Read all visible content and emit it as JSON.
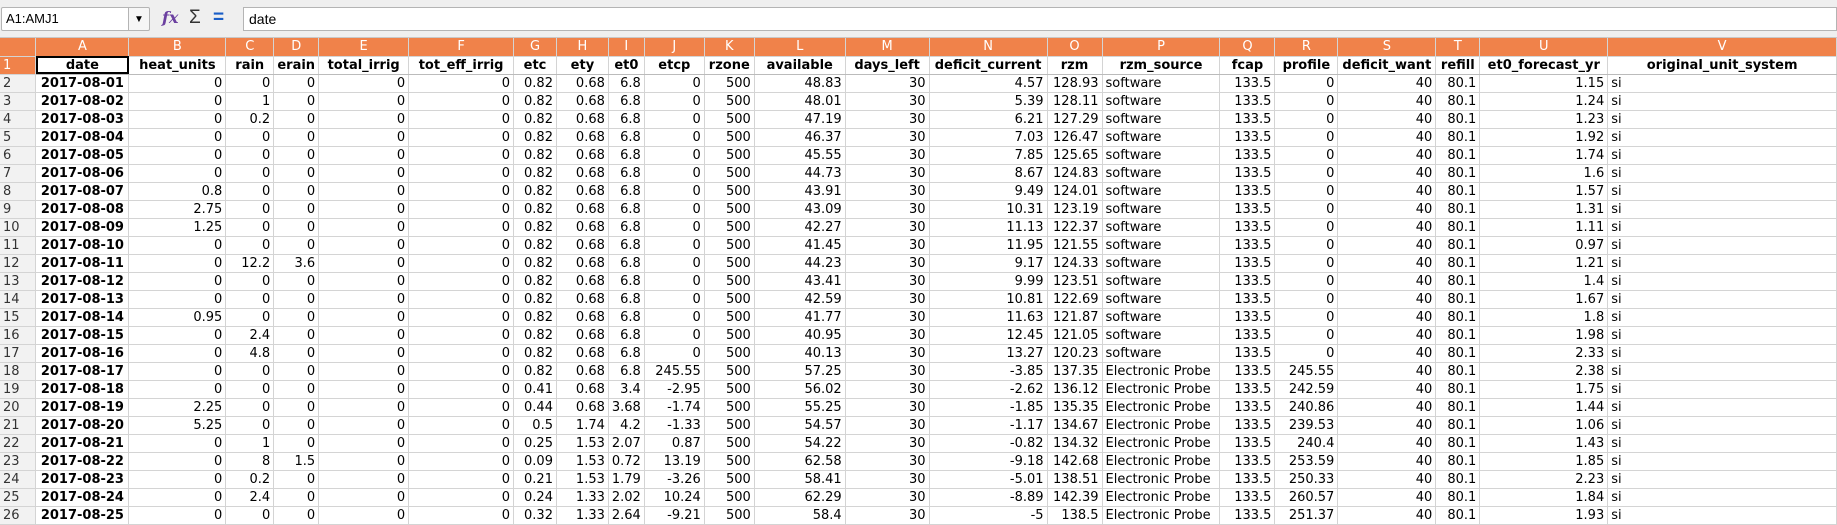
{
  "formula_bar": {
    "name_box": "A1:AMJ1",
    "formula": "date",
    "icons": [
      "function-wizard-icon",
      "sum-icon",
      "formula-equals-icon"
    ]
  },
  "colors": {
    "header_accent": "#f0824a"
  },
  "columns": [
    "A",
    "B",
    "C",
    "D",
    "E",
    "F",
    "G",
    "H",
    "I",
    "J",
    "K",
    "L",
    "M",
    "N",
    "O",
    "P",
    "Q",
    "R",
    "S",
    "T",
    "U",
    "V"
  ],
  "headers": [
    "date",
    "heat_units",
    "rain",
    "erain",
    "total_irrig",
    "tot_eff_irrig",
    "etc",
    "ety",
    "et0",
    "etcp",
    "rzone",
    "available",
    "days_left",
    "deficit_current",
    "rzm",
    "rzm_source",
    "fcap",
    "profile",
    "deficit_want",
    "refill",
    "et0_forecast_yr",
    "original_unit_system"
  ],
  "rows": [
    {
      "n": "2",
      "c": [
        "2017-08-01",
        "0",
        "0",
        "0",
        "0",
        "0",
        "0.82",
        "0.68",
        "6.8",
        "0",
        "500",
        "48.83",
        "30",
        "4.57",
        "128.93",
        "software",
        "133.5",
        "0",
        "40",
        "80.1",
        "1.15",
        "si"
      ]
    },
    {
      "n": "3",
      "c": [
        "2017-08-02",
        "0",
        "1",
        "0",
        "0",
        "0",
        "0.82",
        "0.68",
        "6.8",
        "0",
        "500",
        "48.01",
        "30",
        "5.39",
        "128.11",
        "software",
        "133.5",
        "0",
        "40",
        "80.1",
        "1.24",
        "si"
      ]
    },
    {
      "n": "4",
      "c": [
        "2017-08-03",
        "0",
        "0.2",
        "0",
        "0",
        "0",
        "0.82",
        "0.68",
        "6.8",
        "0",
        "500",
        "47.19",
        "30",
        "6.21",
        "127.29",
        "software",
        "133.5",
        "0",
        "40",
        "80.1",
        "1.23",
        "si"
      ]
    },
    {
      "n": "5",
      "c": [
        "2017-08-04",
        "0",
        "0",
        "0",
        "0",
        "0",
        "0.82",
        "0.68",
        "6.8",
        "0",
        "500",
        "46.37",
        "30",
        "7.03",
        "126.47",
        "software",
        "133.5",
        "0",
        "40",
        "80.1",
        "1.92",
        "si"
      ]
    },
    {
      "n": "6",
      "c": [
        "2017-08-05",
        "0",
        "0",
        "0",
        "0",
        "0",
        "0.82",
        "0.68",
        "6.8",
        "0",
        "500",
        "45.55",
        "30",
        "7.85",
        "125.65",
        "software",
        "133.5",
        "0",
        "40",
        "80.1",
        "1.74",
        "si"
      ]
    },
    {
      "n": "7",
      "c": [
        "2017-08-06",
        "0",
        "0",
        "0",
        "0",
        "0",
        "0.82",
        "0.68",
        "6.8",
        "0",
        "500",
        "44.73",
        "30",
        "8.67",
        "124.83",
        "software",
        "133.5",
        "0",
        "40",
        "80.1",
        "1.6",
        "si"
      ]
    },
    {
      "n": "8",
      "c": [
        "2017-08-07",
        "0.8",
        "0",
        "0",
        "0",
        "0",
        "0.82",
        "0.68",
        "6.8",
        "0",
        "500",
        "43.91",
        "30",
        "9.49",
        "124.01",
        "software",
        "133.5",
        "0",
        "40",
        "80.1",
        "1.57",
        "si"
      ]
    },
    {
      "n": "9",
      "c": [
        "2017-08-08",
        "2.75",
        "0",
        "0",
        "0",
        "0",
        "0.82",
        "0.68",
        "6.8",
        "0",
        "500",
        "43.09",
        "30",
        "10.31",
        "123.19",
        "software",
        "133.5",
        "0",
        "40",
        "80.1",
        "1.31",
        "si"
      ]
    },
    {
      "n": "10",
      "c": [
        "2017-08-09",
        "1.25",
        "0",
        "0",
        "0",
        "0",
        "0.82",
        "0.68",
        "6.8",
        "0",
        "500",
        "42.27",
        "30",
        "11.13",
        "122.37",
        "software",
        "133.5",
        "0",
        "40",
        "80.1",
        "1.11",
        "si"
      ]
    },
    {
      "n": "11",
      "c": [
        "2017-08-10",
        "0",
        "0",
        "0",
        "0",
        "0",
        "0.82",
        "0.68",
        "6.8",
        "0",
        "500",
        "41.45",
        "30",
        "11.95",
        "121.55",
        "software",
        "133.5",
        "0",
        "40",
        "80.1",
        "0.97",
        "si"
      ]
    },
    {
      "n": "12",
      "c": [
        "2017-08-11",
        "0",
        "12.2",
        "3.6",
        "0",
        "0",
        "0.82",
        "0.68",
        "6.8",
        "0",
        "500",
        "44.23",
        "30",
        "9.17",
        "124.33",
        "software",
        "133.5",
        "0",
        "40",
        "80.1",
        "1.21",
        "si"
      ]
    },
    {
      "n": "13",
      "c": [
        "2017-08-12",
        "0",
        "0",
        "0",
        "0",
        "0",
        "0.82",
        "0.68",
        "6.8",
        "0",
        "500",
        "43.41",
        "30",
        "9.99",
        "123.51",
        "software",
        "133.5",
        "0",
        "40",
        "80.1",
        "1.4",
        "si"
      ]
    },
    {
      "n": "14",
      "c": [
        "2017-08-13",
        "0",
        "0",
        "0",
        "0",
        "0",
        "0.82",
        "0.68",
        "6.8",
        "0",
        "500",
        "42.59",
        "30",
        "10.81",
        "122.69",
        "software",
        "133.5",
        "0",
        "40",
        "80.1",
        "1.67",
        "si"
      ]
    },
    {
      "n": "15",
      "c": [
        "2017-08-14",
        "0.95",
        "0",
        "0",
        "0",
        "0",
        "0.82",
        "0.68",
        "6.8",
        "0",
        "500",
        "41.77",
        "30",
        "11.63",
        "121.87",
        "software",
        "133.5",
        "0",
        "40",
        "80.1",
        "1.8",
        "si"
      ]
    },
    {
      "n": "16",
      "c": [
        "2017-08-15",
        "0",
        "2.4",
        "0",
        "0",
        "0",
        "0.82",
        "0.68",
        "6.8",
        "0",
        "500",
        "40.95",
        "30",
        "12.45",
        "121.05",
        "software",
        "133.5",
        "0",
        "40",
        "80.1",
        "1.98",
        "si"
      ]
    },
    {
      "n": "17",
      "c": [
        "2017-08-16",
        "0",
        "4.8",
        "0",
        "0",
        "0",
        "0.82",
        "0.68",
        "6.8",
        "0",
        "500",
        "40.13",
        "30",
        "13.27",
        "120.23",
        "software",
        "133.5",
        "0",
        "40",
        "80.1",
        "2.33",
        "si"
      ]
    },
    {
      "n": "18",
      "c": [
        "2017-08-17",
        "0",
        "0",
        "0",
        "0",
        "0",
        "0.82",
        "0.68",
        "6.8",
        "245.55",
        "500",
        "57.25",
        "30",
        "-3.85",
        "137.35",
        "Electronic Probe",
        "133.5",
        "245.55",
        "40",
        "80.1",
        "2.38",
        "si"
      ]
    },
    {
      "n": "19",
      "c": [
        "2017-08-18",
        "0",
        "0",
        "0",
        "0",
        "0",
        "0.41",
        "0.68",
        "3.4",
        "-2.95",
        "500",
        "56.02",
        "30",
        "-2.62",
        "136.12",
        "Electronic Probe",
        "133.5",
        "242.59",
        "40",
        "80.1",
        "1.75",
        "si"
      ]
    },
    {
      "n": "20",
      "c": [
        "2017-08-19",
        "2.25",
        "0",
        "0",
        "0",
        "0",
        "0.44",
        "0.68",
        "3.68",
        "-1.74",
        "500",
        "55.25",
        "30",
        "-1.85",
        "135.35",
        "Electronic Probe",
        "133.5",
        "240.86",
        "40",
        "80.1",
        "1.44",
        "si"
      ]
    },
    {
      "n": "21",
      "c": [
        "2017-08-20",
        "5.25",
        "0",
        "0",
        "0",
        "0",
        "0.5",
        "1.74",
        "4.2",
        "-1.33",
        "500",
        "54.57",
        "30",
        "-1.17",
        "134.67",
        "Electronic Probe",
        "133.5",
        "239.53",
        "40",
        "80.1",
        "1.06",
        "si"
      ]
    },
    {
      "n": "22",
      "c": [
        "2017-08-21",
        "0",
        "1",
        "0",
        "0",
        "0",
        "0.25",
        "1.53",
        "2.07",
        "0.87",
        "500",
        "54.22",
        "30",
        "-0.82",
        "134.32",
        "Electronic Probe",
        "133.5",
        "240.4",
        "40",
        "80.1",
        "1.43",
        "si"
      ]
    },
    {
      "n": "23",
      "c": [
        "2017-08-22",
        "0",
        "8",
        "1.5",
        "0",
        "0",
        "0.09",
        "1.53",
        "0.72",
        "13.19",
        "500",
        "62.58",
        "30",
        "-9.18",
        "142.68",
        "Electronic Probe",
        "133.5",
        "253.59",
        "40",
        "80.1",
        "1.85",
        "si"
      ]
    },
    {
      "n": "24",
      "c": [
        "2017-08-23",
        "0",
        "0.2",
        "0",
        "0",
        "0",
        "0.21",
        "1.53",
        "1.79",
        "-3.26",
        "500",
        "58.41",
        "30",
        "-5.01",
        "138.51",
        "Electronic Probe",
        "133.5",
        "250.33",
        "40",
        "80.1",
        "2.23",
        "si"
      ]
    },
    {
      "n": "25",
      "c": [
        "2017-08-24",
        "0",
        "2.4",
        "0",
        "0",
        "0",
        "0.24",
        "1.33",
        "2.02",
        "10.24",
        "500",
        "62.29",
        "30",
        "-8.89",
        "142.39",
        "Electronic Probe",
        "133.5",
        "260.57",
        "40",
        "80.1",
        "1.84",
        "si"
      ]
    },
    {
      "n": "26",
      "c": [
        "2017-08-25",
        "0",
        "0",
        "0",
        "0",
        "0",
        "0.32",
        "1.33",
        "2.64",
        "-9.21",
        "500",
        "58.4",
        "30",
        "-5",
        "138.5",
        "Electronic Probe",
        "133.5",
        "251.37",
        "40",
        "80.1",
        "1.93",
        "si"
      ]
    }
  ]
}
